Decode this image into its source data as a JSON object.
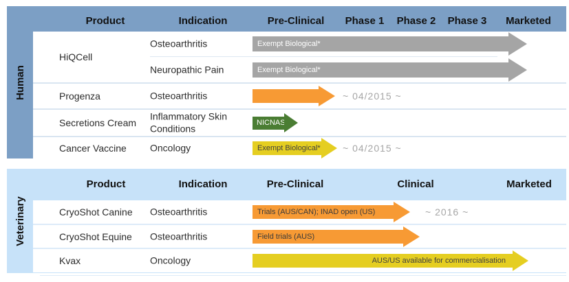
{
  "colors": {
    "human_section_bg": "#7C9FC5",
    "veterinary_section_bg": "#C7E2F9",
    "gray_arrow": "#A5A5A5",
    "orange_arrow": "#F79A34",
    "green_arrow": "#4A7D33",
    "yellow_arrow": "#E5CE21",
    "annotation_text": "#A6A6A6",
    "header_text": "#111111"
  },
  "human": {
    "section_label": "Human",
    "headers": {
      "product": "Product",
      "indication": "Indication",
      "preclinical": "Pre-Clinical",
      "phase1": "Phase 1",
      "phase2": "Phase 2",
      "phase3": "Phase 3",
      "marketed": "Marketed"
    },
    "hiqcell": {
      "product": "HiQCell",
      "sub_rows": [
        {
          "indication": "Osteoarthritis",
          "arrow_label": "Exempt Biological*",
          "arrow_color": "#A5A5A5",
          "extends_to": "Marketed"
        },
        {
          "indication": "Neuropathic Pain",
          "arrow_label": "Exempt Biological*",
          "arrow_color": "#A5A5A5",
          "extends_to": "Marketed"
        }
      ]
    },
    "rows": [
      {
        "product": "Progenza",
        "indication": "Osteoarthritis",
        "arrow_label": "",
        "arrow_color": "#F79A34",
        "extends_to": "Phase 1",
        "annotation": "~ 04/2015 ~"
      },
      {
        "product": "Secretions Cream",
        "indication": "Inflammatory Skin Conditions",
        "arrow_label": "NICNAS",
        "arrow_color": "#4A7D33",
        "extends_to": "Pre-Clinical"
      },
      {
        "product": "Cancer Vaccine",
        "indication": "Oncology",
        "arrow_label": "Exempt Biological*",
        "arrow_color": "#E5CE21",
        "extends_to": "Phase 1",
        "annotation": "~ 04/2015 ~"
      }
    ]
  },
  "veterinary": {
    "section_label": "Veterinary",
    "headers": {
      "product": "Product",
      "indication": "Indication",
      "preclinical": "Pre-Clinical",
      "clinical": "Clinical",
      "marketed": "Marketed"
    },
    "rows": [
      {
        "product": "CryoShot Canine",
        "indication": "Osteoarthritis",
        "arrow_label": "Trials (AUS/CAN); INAD open (US)",
        "arrow_color": "#F79A34",
        "extends_to": "Clinical",
        "annotation": "~ 2016 ~"
      },
      {
        "product": "CryoShot Equine",
        "indication": "Osteoarthritis",
        "arrow_label": "Field trials (AUS)",
        "arrow_color": "#F79A34",
        "extends_to": "Clinical"
      },
      {
        "product": "Kvax",
        "indication": "Oncology",
        "arrow_label": "AUS/US available for commercialisation",
        "arrow_color": "#E5CE21",
        "extends_to": "Marketed"
      }
    ]
  }
}
